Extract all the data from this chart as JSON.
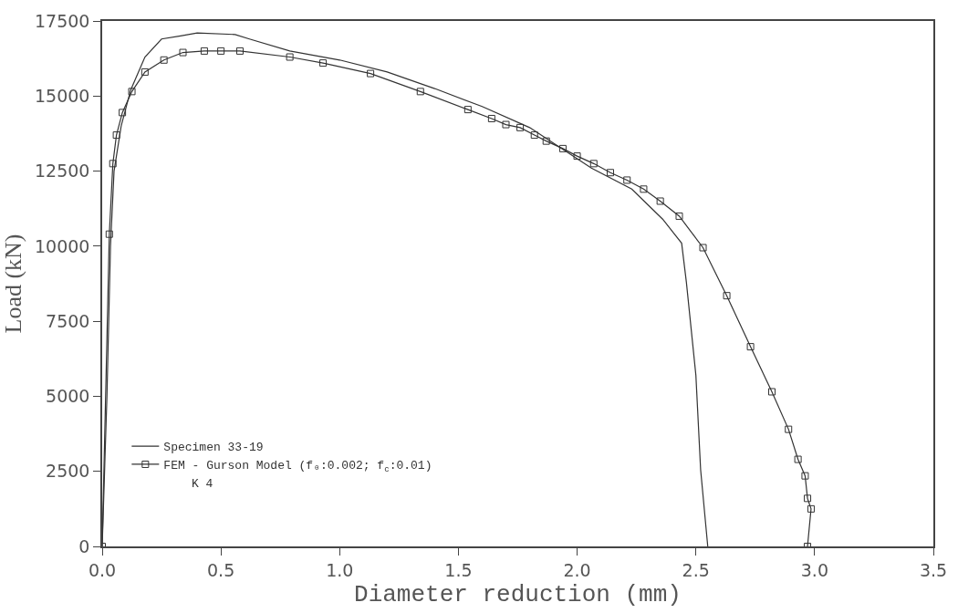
{
  "chart_data": {
    "type": "line",
    "xlabel": "Diameter reduction (mm)",
    "ylabel": "Load (kN)",
    "xlim": [
      0,
      3.5
    ],
    "ylim": [
      0,
      17500
    ],
    "xticks": [
      {
        "value": 0,
        "label": "0.0"
      },
      {
        "value": 0.5,
        "label": "0.5"
      },
      {
        "value": 1,
        "label": "1.0"
      },
      {
        "value": 1.5,
        "label": "1.5"
      },
      {
        "value": 2,
        "label": "2.0"
      },
      {
        "value": 2.5,
        "label": "2.5"
      },
      {
        "value": 3,
        "label": "3.0"
      },
      {
        "value": 3.5,
        "label": "3.5"
      }
    ],
    "yticks": [
      0,
      2500,
      5000,
      7500,
      10000,
      12500,
      15000,
      17500
    ],
    "grid": false,
    "legend": "bottom left",
    "annotations": [
      "K 4"
    ],
    "series": [
      {
        "name": "Specimen 33-19",
        "marker": "none",
        "line_style": "solid",
        "color": "#333333",
        "x": [
          0,
          0.02,
          0.035,
          0.05,
          0.08,
          0.12,
          0.18,
          0.25,
          0.33,
          0.4,
          0.56,
          0.62,
          0.79,
          1.0,
          1.2,
          1.4,
          1.6,
          1.8,
          2.06,
          2.23,
          2.36,
          2.44,
          2.46,
          2.5,
          2.52,
          2.55
        ],
        "values": [
          0,
          5000,
          10000,
          12500,
          14000,
          15200,
          16300,
          16900,
          17000,
          17100,
          17050,
          16900,
          16500,
          16200,
          15800,
          15250,
          14650,
          13950,
          12600,
          11900,
          10900,
          10100,
          8800,
          5700,
          2550,
          0
        ]
      },
      {
        "name": "FEM - Gurson Model (f₀:0.002; f$_{c}$:0.01)",
        "marker": "square",
        "line_style": "solid",
        "color": "#333333",
        "x": [
          0,
          0.03,
          0.045,
          0.06,
          0.085,
          0.125,
          0.18,
          0.26,
          0.34,
          0.43,
          0.5,
          0.58,
          0.79,
          0.93,
          1.13,
          1.34,
          1.54,
          1.64,
          1.7,
          1.76,
          1.82,
          1.87,
          1.94,
          2.0,
          2.07,
          2.14,
          2.21,
          2.28,
          2.35,
          2.43,
          2.53,
          2.63,
          2.73,
          2.82,
          2.89,
          2.93,
          2.96,
          2.97,
          2.985,
          2.97
        ],
        "values": [
          0,
          10400,
          12750,
          13700,
          14450,
          15150,
          15800,
          16200,
          16450,
          16500,
          16500,
          16500,
          16300,
          16100,
          15750,
          15150,
          14550,
          14250,
          14050,
          13950,
          13700,
          13500,
          13250,
          13000,
          12750,
          12450,
          12200,
          11900,
          11500,
          11000,
          9950,
          8350,
          6650,
          5150,
          3900,
          2900,
          2350,
          1600,
          1250,
          0
        ]
      }
    ]
  }
}
